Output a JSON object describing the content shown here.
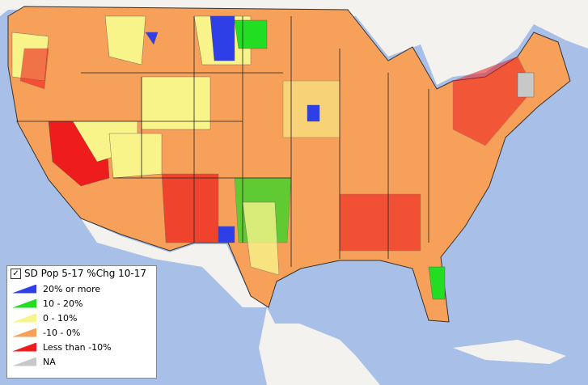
{
  "legend": {
    "title": "SD Pop 5-17 %Chg 10-17",
    "items": [
      {
        "label": "20% or more",
        "color": "#2f3fe8"
      },
      {
        "label": "10 - 20%",
        "color": "#22dd22"
      },
      {
        "label": "0 - 10%",
        "color": "#f8f48a"
      },
      {
        "label": "-10 - 0%",
        "color": "#f6a05a"
      },
      {
        "label": "Less than -10%",
        "color": "#ee1c1c"
      },
      {
        "label": "NA",
        "color": "#c8c8c8"
      }
    ]
  }
}
